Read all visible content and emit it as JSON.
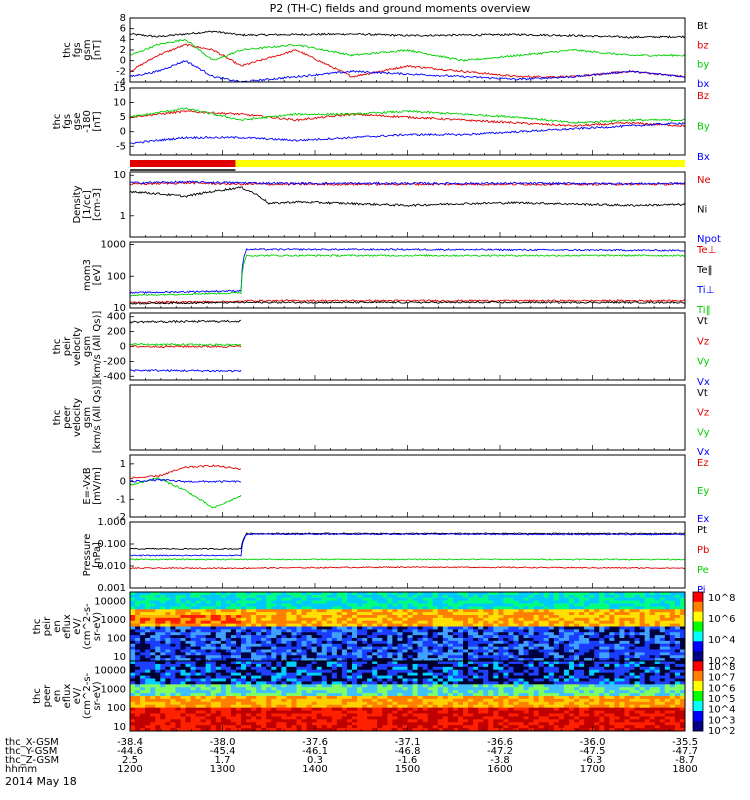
{
  "title": "P2 (TH-C) fields and ground moments overview",
  "date_label": "2014 May 18",
  "colors": {
    "black": "#000000",
    "red": "#e00000",
    "green": "#00d000",
    "blue": "#0000ff",
    "yellow": "#ffff00",
    "spec_low": "#10107f",
    "spec_mid": "#00c8ff",
    "spec_hi": "#ff2000"
  },
  "chart_data": [
    {
      "id": "fgs",
      "type": "line",
      "ylabel": [
        "thc",
        "fgs",
        "gsm",
        "[nT]"
      ],
      "yticks": [
        "8",
        "6",
        "4",
        "2",
        "0",
        "-2",
        "-4"
      ],
      "ylim": [
        -4,
        8
      ],
      "legend": [
        {
          "name": "Bt",
          "color": "black"
        },
        {
          "name": "bz",
          "color": "red"
        },
        {
          "name": "by",
          "color": "green"
        },
        {
          "name": "bx",
          "color": "blue"
        }
      ],
      "series": [
        {
          "name": "Bt",
          "color": "black",
          "x": [
            0,
            0.05,
            0.1,
            0.15,
            0.2,
            0.3,
            0.4,
            0.5,
            0.6,
            0.7,
            0.8,
            0.9,
            1.0
          ],
          "y": [
            5,
            4.5,
            5,
            5.5,
            4.8,
            4.9,
            5.0,
            4.7,
            4.8,
            4.9,
            4.7,
            4.4,
            4.5
          ]
        },
        {
          "name": "bz",
          "color": "red",
          "x": [
            0,
            0.05,
            0.1,
            0.15,
            0.2,
            0.3,
            0.4,
            0.5,
            0.6,
            0.7,
            0.8,
            0.9,
            1.0
          ],
          "y": [
            -2,
            1,
            3,
            2,
            -1,
            2,
            -3,
            -1,
            -2,
            -3,
            -3,
            -2,
            -3
          ]
        },
        {
          "name": "by",
          "color": "green",
          "x": [
            0,
            0.05,
            0.1,
            0.15,
            0.2,
            0.3,
            0.4,
            0.5,
            0.6,
            0.7,
            0.8,
            0.9,
            1.0
          ],
          "y": [
            1,
            3,
            4,
            0,
            2,
            3,
            1,
            2,
            0,
            1,
            2,
            1,
            1
          ]
        },
        {
          "name": "bx",
          "color": "blue",
          "x": [
            0,
            0.05,
            0.1,
            0.15,
            0.2,
            0.3,
            0.4,
            0.5,
            0.6,
            0.7,
            0.8,
            0.9,
            1.0
          ],
          "y": [
            -3,
            -2,
            0,
            -3,
            -4,
            -3,
            -2,
            -2.5,
            -3,
            -3.5,
            -3,
            -2,
            -3
          ]
        }
      ]
    },
    {
      "id": "fgs_gse",
      "type": "line",
      "ylabel": [
        "thc",
        "fgs",
        "gse",
        "-180",
        "[nT]"
      ],
      "yticks": [
        "15",
        "10",
        "5",
        "0",
        "-5"
      ],
      "ylim": [
        -8,
        15
      ],
      "legend": [
        {
          "name": "Bz",
          "color": "red"
        },
        {
          "name": "By",
          "color": "green"
        },
        {
          "name": "Bx",
          "color": "blue"
        }
      ],
      "series": [
        {
          "name": "Bz",
          "color": "red",
          "x": [
            0,
            0.1,
            0.2,
            0.3,
            0.4,
            0.5,
            0.6,
            0.7,
            0.8,
            0.9,
            1.0
          ],
          "y": [
            5,
            7,
            6,
            4,
            6,
            5,
            4,
            3,
            2,
            3,
            2
          ]
        },
        {
          "name": "By",
          "color": "green",
          "x": [
            0,
            0.1,
            0.2,
            0.3,
            0.4,
            0.5,
            0.6,
            0.7,
            0.8,
            0.9,
            1.0
          ],
          "y": [
            5,
            8,
            4,
            6,
            6,
            7,
            6,
            5,
            3,
            4,
            4
          ]
        },
        {
          "name": "Bx",
          "color": "blue",
          "x": [
            0,
            0.1,
            0.2,
            0.3,
            0.4,
            0.5,
            0.6,
            0.7,
            0.8,
            0.9,
            1.0
          ],
          "y": [
            -4,
            -2,
            -2,
            -3,
            -2,
            -1,
            -1,
            0,
            1,
            2,
            3
          ]
        }
      ]
    },
    {
      "id": "density",
      "type": "line",
      "scale": "log",
      "ylabel": [
        "Density",
        "[1/cc]",
        "[cm-3]"
      ],
      "yticks": [
        "10",
        "1"
      ],
      "ylim": [
        0.3,
        12
      ],
      "legend": [
        {
          "name": "Ne",
          "color": "red"
        },
        {
          "name": "Ni",
          "color": "black"
        },
        {
          "name": "Npot",
          "color": "blue"
        }
      ],
      "series": [
        {
          "name": "Ne",
          "color": "red",
          "x": [
            0,
            0.1,
            0.2,
            0.3,
            0.5,
            0.7,
            0.9,
            1.0
          ],
          "y": [
            6,
            6.5,
            6,
            6,
            6,
            6,
            6,
            6
          ]
        },
        {
          "name": "Ni",
          "color": "black",
          "x": [
            0,
            0.1,
            0.2,
            0.25,
            0.3,
            0.5,
            0.6,
            0.7,
            0.9,
            1.0
          ],
          "y": [
            4,
            3,
            5,
            2,
            2.2,
            1.8,
            2,
            2.1,
            1.8,
            1.9
          ]
        },
        {
          "name": "Npot",
          "color": "blue",
          "x": [
            0,
            0.1,
            0.2,
            0.3,
            0.5,
            0.7,
            0.9,
            1.0
          ],
          "y": [
            6.5,
            6.8,
            6.5,
            6.3,
            6.3,
            6.3,
            6.2,
            6.3
          ]
        }
      ]
    },
    {
      "id": "temperature",
      "type": "line",
      "scale": "log",
      "ylabel": [
        "mom3",
        "[eV]"
      ],
      "yticks": [
        "1000",
        "100",
        "10"
      ],
      "ylim": [
        10,
        1200
      ],
      "legend": [
        {
          "name": "Te⊥",
          "color": "red"
        },
        {
          "name": "Te‖",
          "color": "black"
        },
        {
          "name": "Ti⊥",
          "color": "blue"
        },
        {
          "name": "Ti‖",
          "color": "green"
        }
      ],
      "series": [
        {
          "name": "Te⊥",
          "color": "red",
          "x": [
            0,
            0.2,
            0.21,
            0.5,
            1.0
          ],
          "y": [
            15,
            16,
            17,
            17,
            17
          ]
        },
        {
          "name": "Te‖",
          "color": "black",
          "x": [
            0,
            0.2,
            0.21,
            0.5,
            1.0
          ],
          "y": [
            14,
            15,
            15,
            15,
            15
          ]
        },
        {
          "name": "Ti⊥",
          "color": "blue",
          "x": [
            0,
            0.2,
            0.21,
            0.5,
            1.0
          ],
          "y": [
            30,
            35,
            700,
            700,
            650
          ]
        },
        {
          "name": "Ti‖",
          "color": "green",
          "x": [
            0,
            0.2,
            0.21,
            0.5,
            1.0
          ],
          "y": [
            25,
            30,
            450,
            450,
            450
          ]
        }
      ]
    },
    {
      "id": "peir_velocity",
      "type": "line",
      "ylabel": [
        "thc",
        "peir",
        "velocity",
        "gsm",
        "[km/s (All Qs)]"
      ],
      "yticks": [
        "400",
        "200",
        "0",
        "-200",
        "-400"
      ],
      "ylim": [
        -450,
        450
      ],
      "legend": [
        {
          "name": "Vt",
          "color": "black"
        },
        {
          "name": "Vz",
          "color": "red"
        },
        {
          "name": "Vy",
          "color": "green"
        },
        {
          "name": "Vx",
          "color": "blue"
        }
      ],
      "series": [
        {
          "name": "Vt",
          "color": "black",
          "x": [
            0,
            0.2
          ],
          "y": [
            330,
            340
          ]
        },
        {
          "name": "Vz",
          "color": "red",
          "x": [
            0,
            0.2
          ],
          "y": [
            0,
            0
          ]
        },
        {
          "name": "Vy",
          "color": "green",
          "x": [
            0,
            0.2
          ],
          "y": [
            30,
            20
          ]
        },
        {
          "name": "Vx",
          "color": "blue",
          "x": [
            0,
            0.2
          ],
          "y": [
            -320,
            -330
          ]
        }
      ]
    },
    {
      "id": "peer_velocity",
      "type": "line",
      "ylabel": [
        "thc",
        "peer",
        "velocity",
        "gsm",
        "[km/s (All Qs)]"
      ],
      "yticks": [],
      "ylim": [
        -450,
        450
      ],
      "legend": [
        {
          "name": "Vt",
          "color": "black"
        },
        {
          "name": "Vz",
          "color": "red"
        },
        {
          "name": "Vy",
          "color": "green"
        },
        {
          "name": "Vx",
          "color": "blue"
        }
      ],
      "series": []
    },
    {
      "id": "efield",
      "type": "line",
      "ylabel": [
        "E=-VxB",
        "[mV/m]"
      ],
      "yticks": [
        "1",
        "0",
        "-1",
        "-2"
      ],
      "ylim": [
        -2,
        1.5
      ],
      "legend": [
        {
          "name": "Ez",
          "color": "red"
        },
        {
          "name": "Ey",
          "color": "green"
        },
        {
          "name": "Ex",
          "color": "blue"
        }
      ],
      "series": [
        {
          "name": "Ez",
          "color": "red",
          "x": [
            0,
            0.05,
            0.1,
            0.15,
            0.2
          ],
          "y": [
            0.2,
            0.3,
            0.8,
            0.9,
            0.7
          ]
        },
        {
          "name": "Ey",
          "color": "green",
          "x": [
            0,
            0.05,
            0.1,
            0.15,
            0.2
          ],
          "y": [
            -0.2,
            0.2,
            -0.5,
            -1.5,
            -0.8
          ]
        },
        {
          "name": "Ex",
          "color": "blue",
          "x": [
            0,
            0.05,
            0.1,
            0.15,
            0.2
          ],
          "y": [
            0.0,
            0.1,
            0.0,
            0.0,
            0.0
          ]
        }
      ]
    },
    {
      "id": "pressure",
      "type": "line",
      "scale": "log",
      "ylabel": [
        "Pressure",
        "[nPa]"
      ],
      "yticks": [
        "1.000",
        "0.100",
        "0.010",
        "0.001"
      ],
      "ylim": [
        0.001,
        1
      ],
      "legend": [
        {
          "name": "Pt",
          "color": "black"
        },
        {
          "name": "Pb",
          "color": "red"
        },
        {
          "name": "Pe",
          "color": "green"
        },
        {
          "name": "Pi",
          "color": "blue"
        }
      ],
      "series": [
        {
          "name": "Pt",
          "color": "black",
          "x": [
            0,
            0.2,
            0.21,
            0.5,
            1.0
          ],
          "y": [
            0.06,
            0.06,
            0.3,
            0.3,
            0.3
          ]
        },
        {
          "name": "Pb",
          "color": "red",
          "x": [
            0,
            0.2,
            0.5,
            1.0
          ],
          "y": [
            0.008,
            0.008,
            0.009,
            0.008
          ]
        },
        {
          "name": "Pe",
          "color": "green",
          "x": [
            0,
            0.2,
            0.5,
            1.0
          ],
          "y": [
            0.02,
            0.02,
            0.02,
            0.02
          ]
        },
        {
          "name": "Pi",
          "color": "blue",
          "x": [
            0,
            0.2,
            0.21,
            0.5,
            1.0
          ],
          "y": [
            0.03,
            0.03,
            0.28,
            0.28,
            0.27
          ]
        }
      ]
    },
    {
      "id": "peir_spec",
      "type": "heatmap",
      "ylabel": [
        "thc",
        "peir",
        "en",
        "eflux",
        "eV/",
        "(cm^2-s-",
        "sr-eV)"
      ],
      "yticks": [
        "10000",
        "1000",
        "100",
        "10"
      ],
      "colorbar": [
        "10^8",
        "10^6",
        "10^4",
        "10^2"
      ]
    },
    {
      "id": "peer_spec",
      "type": "heatmap",
      "ylabel": [
        "thc",
        "peer",
        "en",
        "eflux",
        "eV/",
        "(cm^2-s-",
        "sr-eV)"
      ],
      "yticks": [
        "10000",
        "1000",
        "100",
        "10"
      ],
      "colorbar": [
        "10^8",
        "10^7",
        "10^6",
        "10^5",
        "10^4",
        "10^3",
        "10^2"
      ]
    }
  ],
  "x_axis": {
    "row_labels": [
      "thc_X-GSM",
      "thc_Y-GSM",
      "thc_Z-GSM",
      "hhmm"
    ],
    "columns": [
      [
        "-38.4",
        "-44.6",
        "2.5",
        "1200"
      ],
      [
        "-38.0",
        "-45.4",
        "1.7",
        "1300"
      ],
      [
        "-37.6",
        "-46.1",
        "0.3",
        "1400"
      ],
      [
        "-37.1",
        "-46.8",
        "-1.6",
        "1500"
      ],
      [
        "-36.6",
        "-47.2",
        "-3.8",
        "1600"
      ],
      [
        "-36.0",
        "-47.5",
        "-6.3",
        "1700"
      ],
      [
        "-35.5",
        "-47.7",
        "-8.7",
        "1800"
      ]
    ]
  }
}
